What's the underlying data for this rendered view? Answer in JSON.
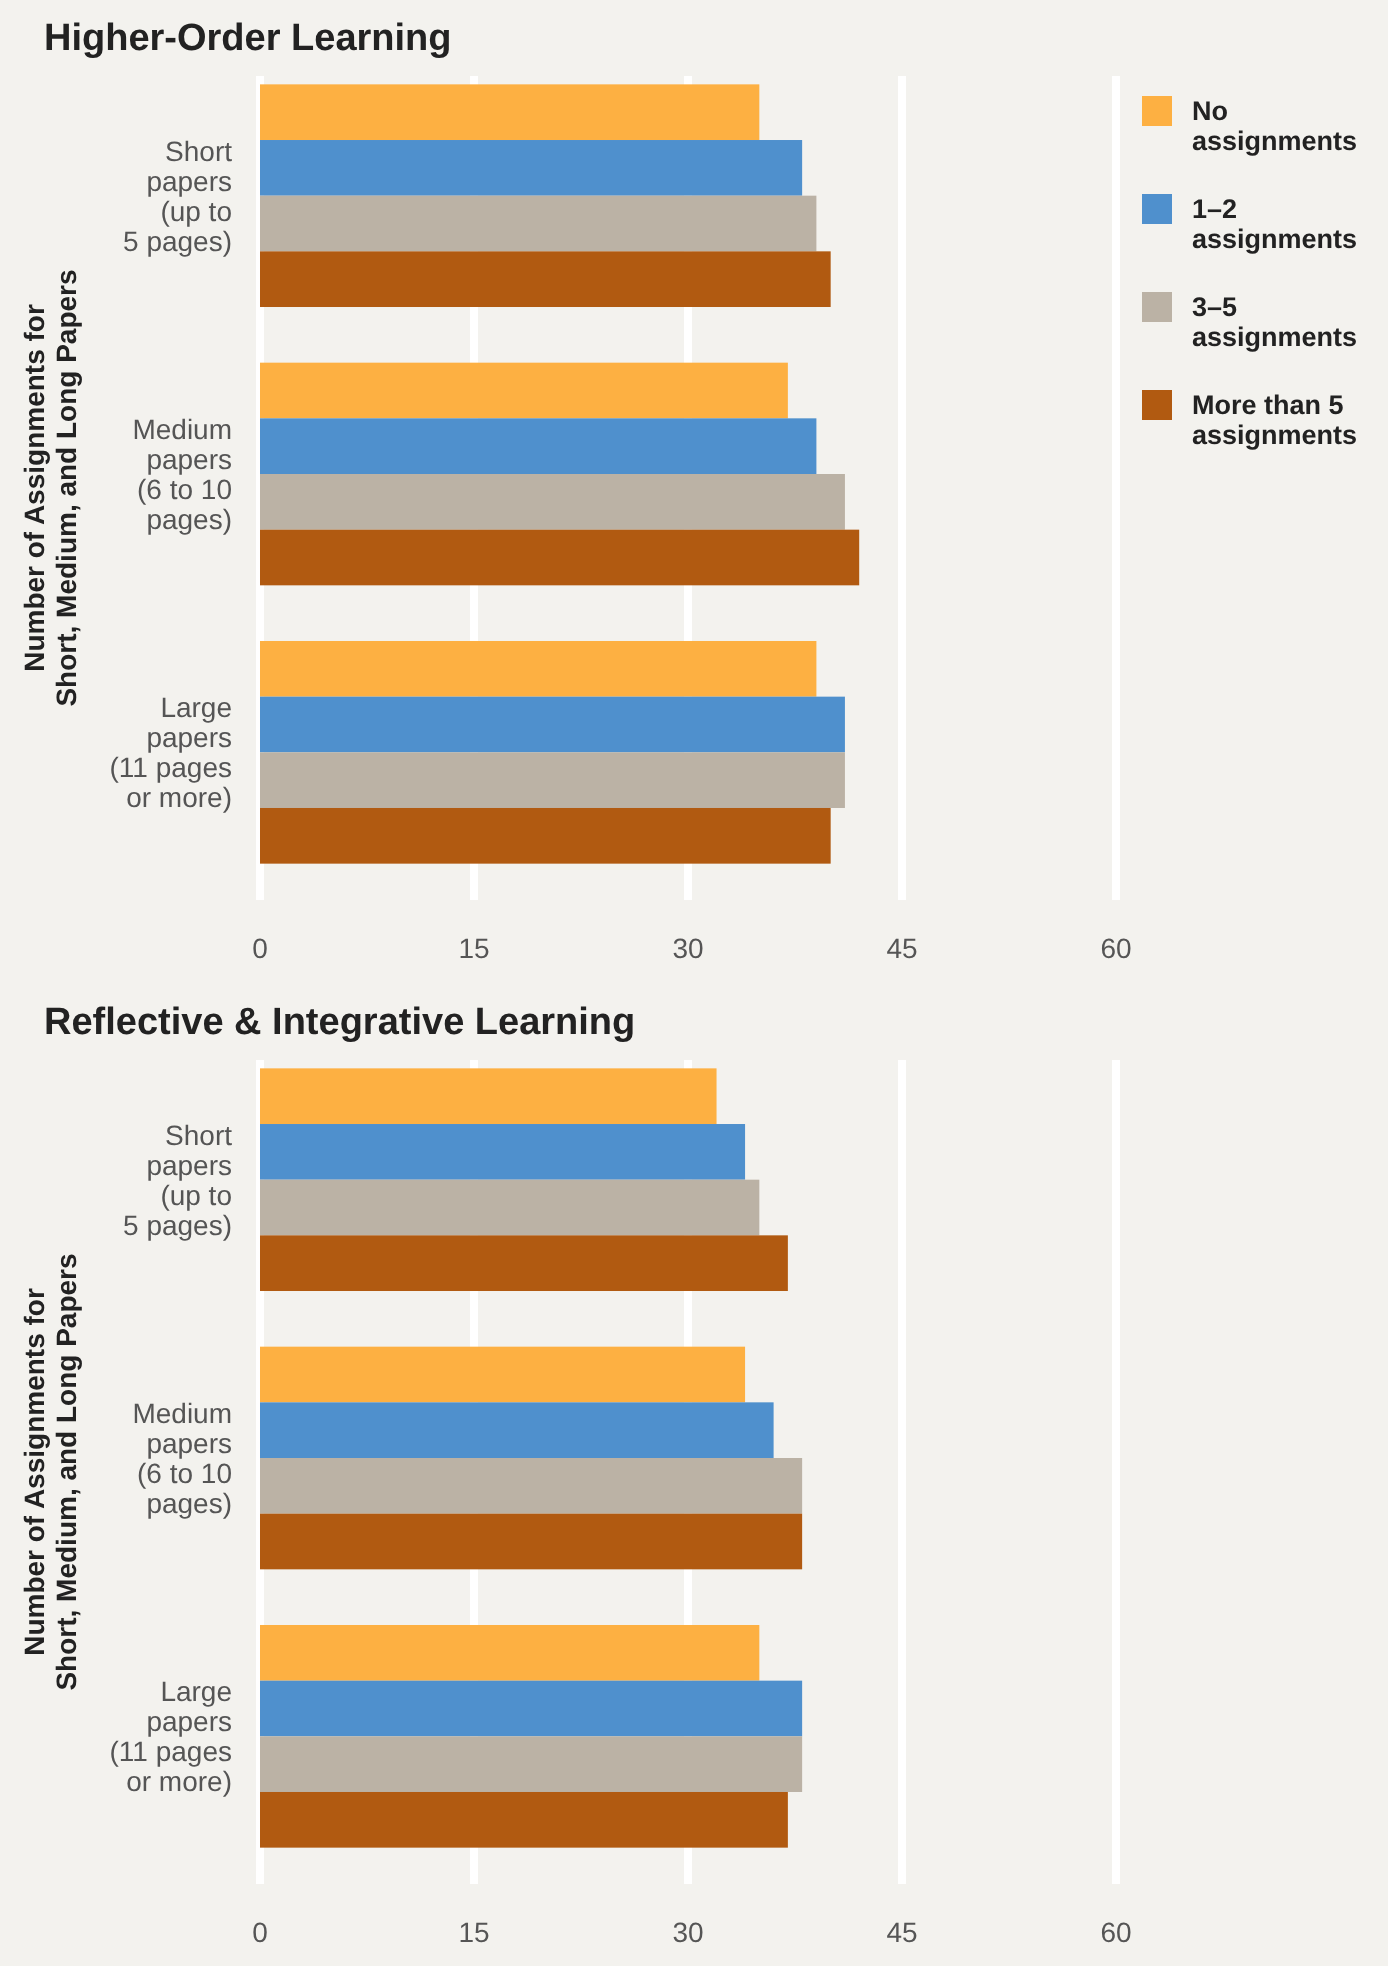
{
  "chart_data": [
    {
      "type": "bar",
      "orientation": "horizontal",
      "title": "Higher-Order Learning",
      "ylabel": "Number of Assignments for\nShort, Medium, and Long Papers",
      "categories": [
        "Short\npapers\n(up to\n5 pages)",
        "Medium\npapers\n(6 to 10\npages)",
        "Large\npapers\n(11 pages\nor more)"
      ],
      "series": [
        {
          "name": "No\nassignments",
          "color": "#fdb042",
          "values": [
            35,
            37,
            39
          ]
        },
        {
          "name": "1–2\nassignments",
          "color": "#4f90cd",
          "values": [
            38,
            39,
            41
          ]
        },
        {
          "name": "3–5\nassignments",
          "color": "#bbb2a5",
          "values": [
            39,
            41,
            41
          ]
        },
        {
          "name": "More than 5\nassignments",
          "color": "#b15a11",
          "values": [
            40,
            42,
            40
          ]
        }
      ],
      "xlim": [
        0,
        60
      ],
      "xticks": [
        0,
        15,
        30,
        45,
        60
      ],
      "grid": "x",
      "legend": "right"
    },
    {
      "type": "bar",
      "orientation": "horizontal",
      "title": "Reflective & Integrative Learning",
      "ylabel": "Number of Assignments for\nShort, Medium, and Long Papers",
      "categories": [
        "Short\npapers\n(up to\n5 pages)",
        "Medium\npapers\n(6 to 10\npages)",
        "Large\npapers\n(11 pages\nor more)"
      ],
      "series": [
        {
          "color": "#fdb042",
          "values": [
            32,
            34,
            35
          ]
        },
        {
          "color": "#4f90cd",
          "values": [
            34,
            36,
            38
          ]
        },
        {
          "color": "#bbb2a5",
          "values": [
            35,
            38,
            38
          ]
        },
        {
          "color": "#b15a11",
          "values": [
            37,
            38,
            37
          ]
        }
      ],
      "xlim": [
        0,
        60
      ],
      "xticks": [
        0,
        15,
        30,
        45,
        60
      ],
      "grid": "x",
      "legend": false
    }
  ]
}
